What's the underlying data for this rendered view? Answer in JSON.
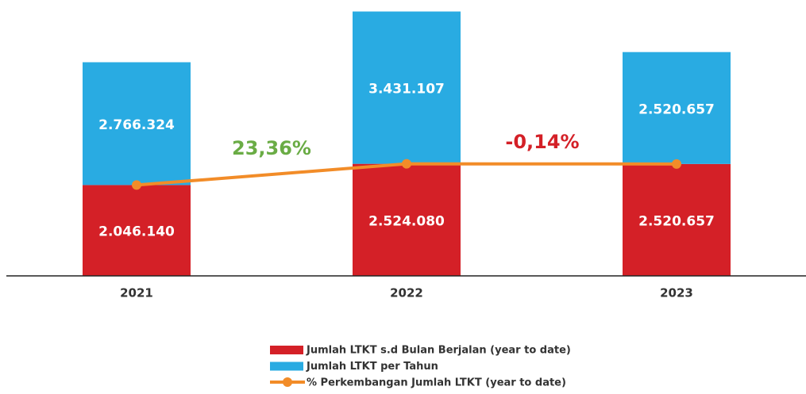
{
  "chart_data": {
    "type": "bar",
    "categories": [
      "2021",
      "2022",
      "2023"
    ],
    "stacked": true,
    "ylim": [
      0,
      6000000
    ],
    "series": [
      {
        "name": "Jumlah LTKT s.d Bulan Berjalan (year to date)",
        "color": "#d42027",
        "values": [
          2046140,
          2524080,
          2520657
        ],
        "value_labels": [
          "2.046.140",
          "2.524.080",
          "2.520.657"
        ]
      },
      {
        "name": "Jumlah LTKT per Tahun",
        "color": "#29abe2",
        "values": [
          2766324,
          3431107,
          2520657
        ],
        "value_labels": [
          "2.766.324",
          "3.431.107",
          "2.520.657"
        ]
      },
      {
        "name": "% Perkembangan Jumlah LTKT (year to date)",
        "type": "line",
        "color": "#f28c28",
        "values": [
          2046140,
          2524080,
          2520657
        ]
      }
    ],
    "annotations": [
      {
        "text": "23,36%",
        "color": "#6aac45"
      },
      {
        "text": "-0,14%",
        "color": "#d42027"
      }
    ]
  }
}
